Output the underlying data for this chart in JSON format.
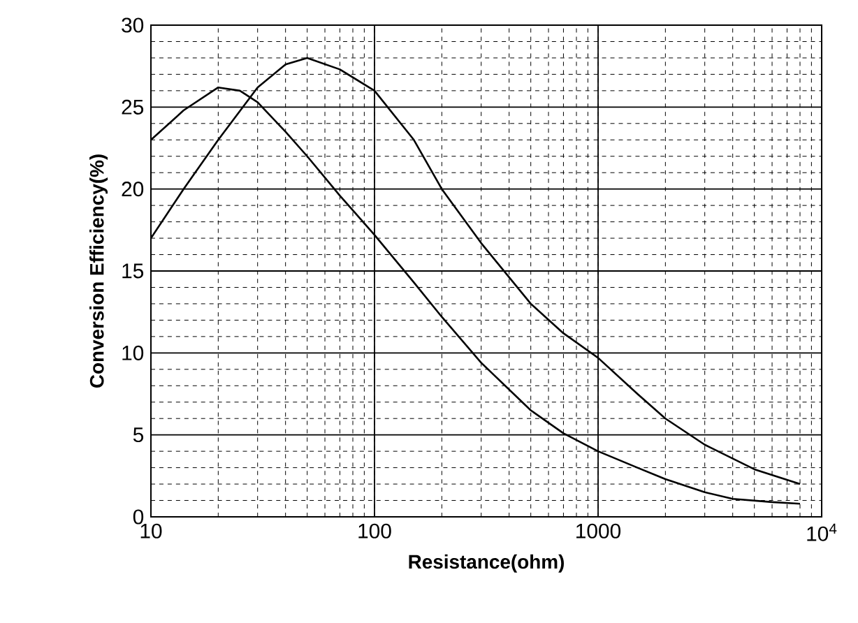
{
  "chart_data": {
    "type": "line",
    "xlabel": "Resistance(ohm)",
    "ylabel": "Conversion Efficiency(%)",
    "log": "x",
    "grid": true,
    "marker": "none",
    "line_style": "solid",
    "xlim": [
      10,
      10000
    ],
    "xticks": [
      10,
      100,
      1000,
      {
        "value": 10000,
        "label": "10$^{4}$"
      }
    ],
    "ylim": [
      0,
      30
    ],
    "yticks": [
      0,
      5,
      10,
      15,
      20,
      25,
      30
    ],
    "series": [
      {
        "color": "#000000",
        "x": [
          10,
          14,
          20,
          25,
          30,
          40,
          50,
          70,
          100,
          150,
          200,
          300,
          500,
          700,
          1000,
          1500,
          2000,
          3000,
          4000,
          6000,
          8000
        ],
        "values": [
          23,
          24.8,
          26.2,
          26,
          25.3,
          23.5,
          22,
          19.6,
          17.2,
          14.3,
          12.2,
          9.4,
          6.5,
          5.1,
          4,
          3,
          2.3,
          1.5,
          1.1,
          0.9,
          0.8
        ]
      },
      {
        "color": "#000000",
        "x": [
          10,
          14,
          20,
          30,
          40,
          50,
          70,
          100,
          150,
          200,
          300,
          500,
          700,
          1000,
          1500,
          2000,
          3000,
          5000,
          8000
        ],
        "values": [
          17,
          20,
          23,
          26.2,
          27.6,
          28,
          27.3,
          26,
          23,
          20,
          16.7,
          13,
          11.2,
          9.7,
          7.5,
          6,
          4.4,
          2.9,
          2
        ]
      }
    ]
  }
}
